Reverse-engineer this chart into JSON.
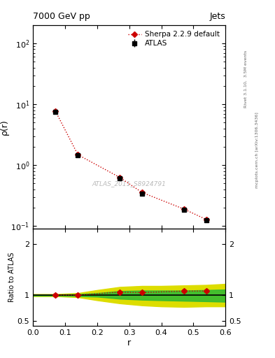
{
  "title": "7000 GeV pp",
  "title_right": "Jets",
  "ylabel_main": "ρ(r)",
  "ylabel_ratio": "Ratio to ATLAS",
  "xlabel": "r",
  "watermark": "ATLAS_2011_S8924791",
  "right_label": "mcplots.cern.ch [arXiv:1306.3436]",
  "right_label2": "Rivet 3.1.10,  3.5M events",
  "atlas_x": [
    0.07,
    0.14,
    0.27,
    0.34,
    0.47,
    0.54
  ],
  "atlas_y": [
    7.5,
    1.45,
    0.6,
    0.34,
    0.185,
    0.125
  ],
  "atlas_yerr": [
    0.25,
    0.07,
    0.03,
    0.02,
    0.012,
    0.008
  ],
  "sherpa_x": [
    0.07,
    0.14,
    0.27,
    0.34,
    0.47,
    0.54
  ],
  "sherpa_y": [
    7.7,
    1.48,
    0.63,
    0.355,
    0.19,
    0.128
  ],
  "ratio_x": [
    0.07,
    0.14,
    0.27,
    0.34,
    0.47,
    0.54
  ],
  "ratio_y": [
    1.0,
    1.0,
    1.06,
    1.05,
    1.08,
    1.08
  ],
  "ratio_yerr": [
    0.025,
    0.025,
    0.025,
    0.025,
    0.025,
    0.025
  ],
  "green_band_x": [
    0.0,
    0.07,
    0.14,
    0.2,
    0.27,
    0.34,
    0.4,
    0.47,
    0.54,
    0.6
  ],
  "green_band_lo": [
    0.99,
    0.99,
    0.98,
    0.97,
    0.93,
    0.91,
    0.9,
    0.89,
    0.88,
    0.87
  ],
  "green_band_hi": [
    1.01,
    1.01,
    1.02,
    1.04,
    1.08,
    1.09,
    1.09,
    1.09,
    1.1,
    1.11
  ],
  "yellow_band_x": [
    0.0,
    0.07,
    0.14,
    0.2,
    0.27,
    0.34,
    0.4,
    0.47,
    0.54,
    0.6
  ],
  "yellow_band_lo": [
    0.98,
    0.98,
    0.96,
    0.9,
    0.84,
    0.8,
    0.78,
    0.77,
    0.78,
    0.78
  ],
  "yellow_band_hi": [
    1.02,
    1.02,
    1.04,
    1.1,
    1.16,
    1.18,
    1.18,
    1.19,
    1.2,
    1.22
  ],
  "xlim": [
    0.0,
    0.6
  ],
  "ylim_main": [
    0.09,
    200
  ],
  "ylim_ratio": [
    0.4,
    2.3
  ],
  "atlas_color": "#000000",
  "sherpa_color": "#cc0000",
  "green_color": "#33bb33",
  "yellow_color": "#dddd00",
  "background_color": "#ffffff",
  "watermark_color": "#bbbbbb"
}
